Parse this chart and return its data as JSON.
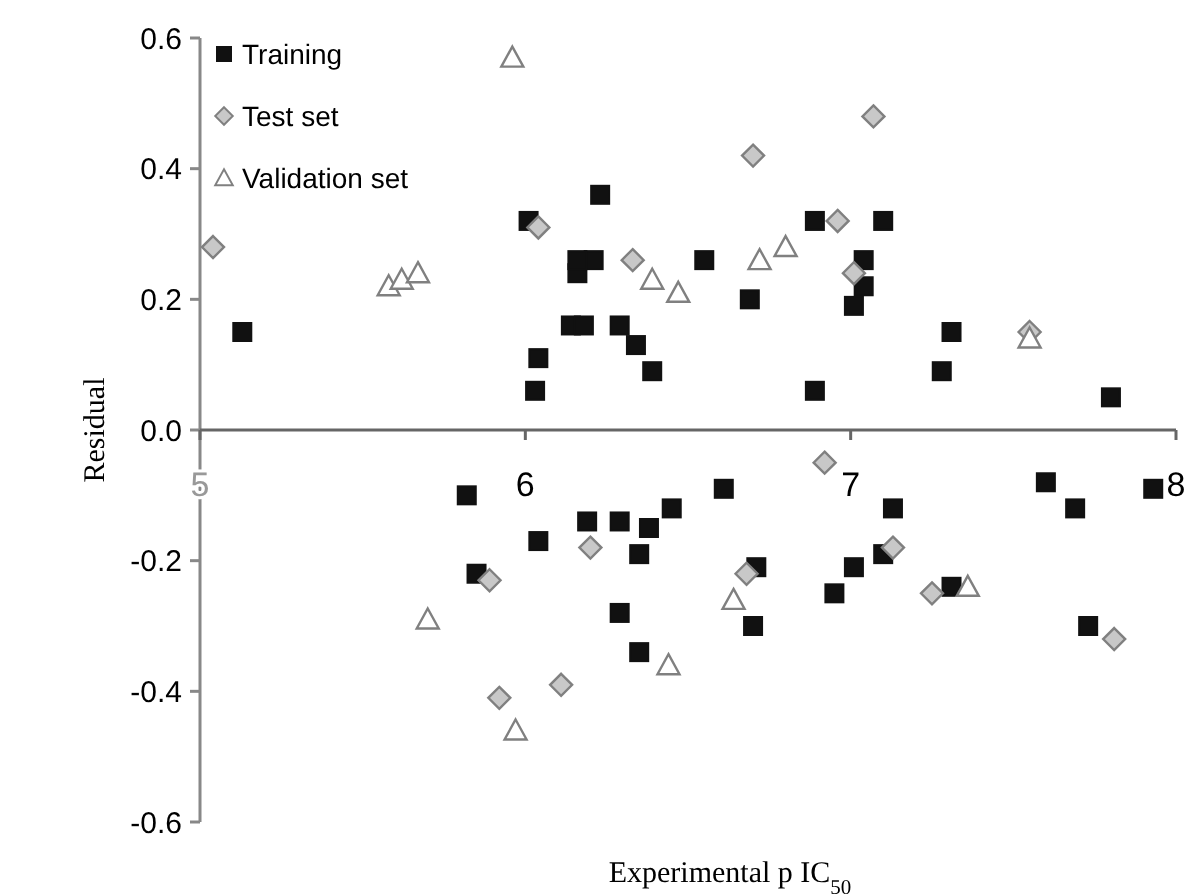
{
  "chart_data": {
    "type": "scatter",
    "xlabel": "Experimental p IC$_{50}$",
    "ylabel": "Residual",
    "xlim": [
      5,
      8
    ],
    "ylim": [
      -0.6,
      0.6
    ],
    "xticks": [
      5,
      6,
      7,
      8
    ],
    "yticks": [
      -0.6,
      -0.4,
      -0.2,
      {
        "value": 0,
        "label": "0.0"
      },
      0.2,
      0.4,
      0.6
    ],
    "grid": false,
    "legend": "top left",
    "series": [
      {
        "name": "Training",
        "color": "#111111",
        "marker": "square",
        "x": [
          5.13,
          6.01,
          6.03,
          6.04,
          6.14,
          6.18,
          6.16,
          6.23,
          6.21,
          6.16,
          6.29,
          6.34,
          6.39,
          6.55,
          6.69,
          6.89,
          6.89,
          7.1,
          7.04,
          7.04,
          7.01,
          7.31,
          7.28,
          7.8,
          5.82,
          6.04,
          5.85,
          6.19,
          6.29,
          6.38,
          6.45,
          6.61,
          6.35,
          6.29,
          6.35,
          6.71,
          6.7,
          7.13,
          7.1,
          7.01,
          6.95,
          7.31,
          7.6,
          7.69,
          7.73,
          7.93
        ],
        "values": [
          0.15,
          0.32,
          0.06,
          0.11,
          0.16,
          0.16,
          0.24,
          0.36,
          0.26,
          0.26,
          0.16,
          0.13,
          0.09,
          0.26,
          0.2,
          0.32,
          0.06,
          0.32,
          0.26,
          0.22,
          0.19,
          0.15,
          0.09,
          0.05,
          -0.1,
          -0.17,
          -0.22,
          -0.14,
          -0.14,
          -0.15,
          -0.12,
          -0.09,
          -0.19,
          -0.28,
          -0.34,
          -0.21,
          -0.3,
          -0.12,
          -0.19,
          -0.21,
          -0.25,
          -0.24,
          -0.08,
          -0.12,
          -0.3,
          -0.09
        ]
      },
      {
        "name": "Test set",
        "color": "#c8c8c8",
        "marker": "diamond",
        "x": [
          5.04,
          6.04,
          6.7,
          6.96,
          7.07,
          7.01,
          6.33,
          7.55,
          6.92,
          5.89,
          6.2,
          5.92,
          6.11,
          6.68,
          7.13,
          7.25,
          7.81
        ],
        "values": [
          0.28,
          0.31,
          0.42,
          0.32,
          0.48,
          0.24,
          0.26,
          0.15,
          -0.05,
          -0.23,
          -0.18,
          -0.41,
          -0.39,
          -0.22,
          -0.18,
          -0.25,
          -0.32
        ]
      },
      {
        "name": "Validation set",
        "color": "#ffffff",
        "marker": "triangle",
        "x": [
          5.96,
          5.58,
          5.62,
          5.67,
          6.39,
          6.47,
          6.72,
          6.8,
          7.55,
          5.7,
          5.97,
          6.64,
          6.44,
          7.36
        ],
        "values": [
          0.57,
          0.22,
          0.23,
          0.24,
          0.23,
          0.21,
          0.26,
          0.28,
          0.14,
          -0.29,
          -0.46,
          -0.26,
          -0.36,
          -0.24
        ]
      }
    ]
  }
}
